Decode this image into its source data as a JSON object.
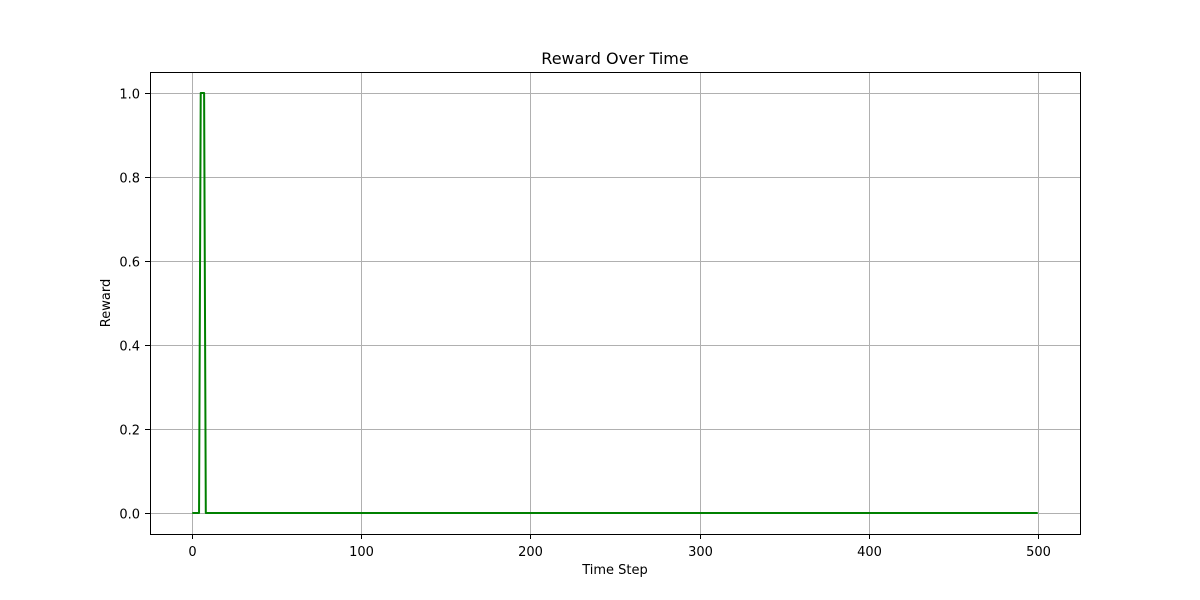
{
  "chart_data": {
    "type": "line",
    "title": "Reward Over Time",
    "xlabel": "Time Step",
    "ylabel": "Reward",
    "xlim": [
      -25,
      525
    ],
    "ylim": [
      -0.05,
      1.05
    ],
    "xticks": [
      0,
      100,
      200,
      300,
      400,
      500
    ],
    "yticks": [
      0.0,
      0.2,
      0.4,
      0.6,
      0.8,
      1.0
    ],
    "xtick_labels": [
      "0",
      "100",
      "200",
      "300",
      "400",
      "500"
    ],
    "ytick_labels": [
      "0.0",
      "0.2",
      "0.4",
      "0.6",
      "0.8",
      "1.0"
    ],
    "grid": true,
    "series": [
      {
        "color": "#008000",
        "x": [
          0,
          4,
          5,
          6,
          7,
          8,
          500
        ],
        "y": [
          0,
          0,
          1,
          1,
          1,
          0,
          0
        ]
      }
    ]
  }
}
